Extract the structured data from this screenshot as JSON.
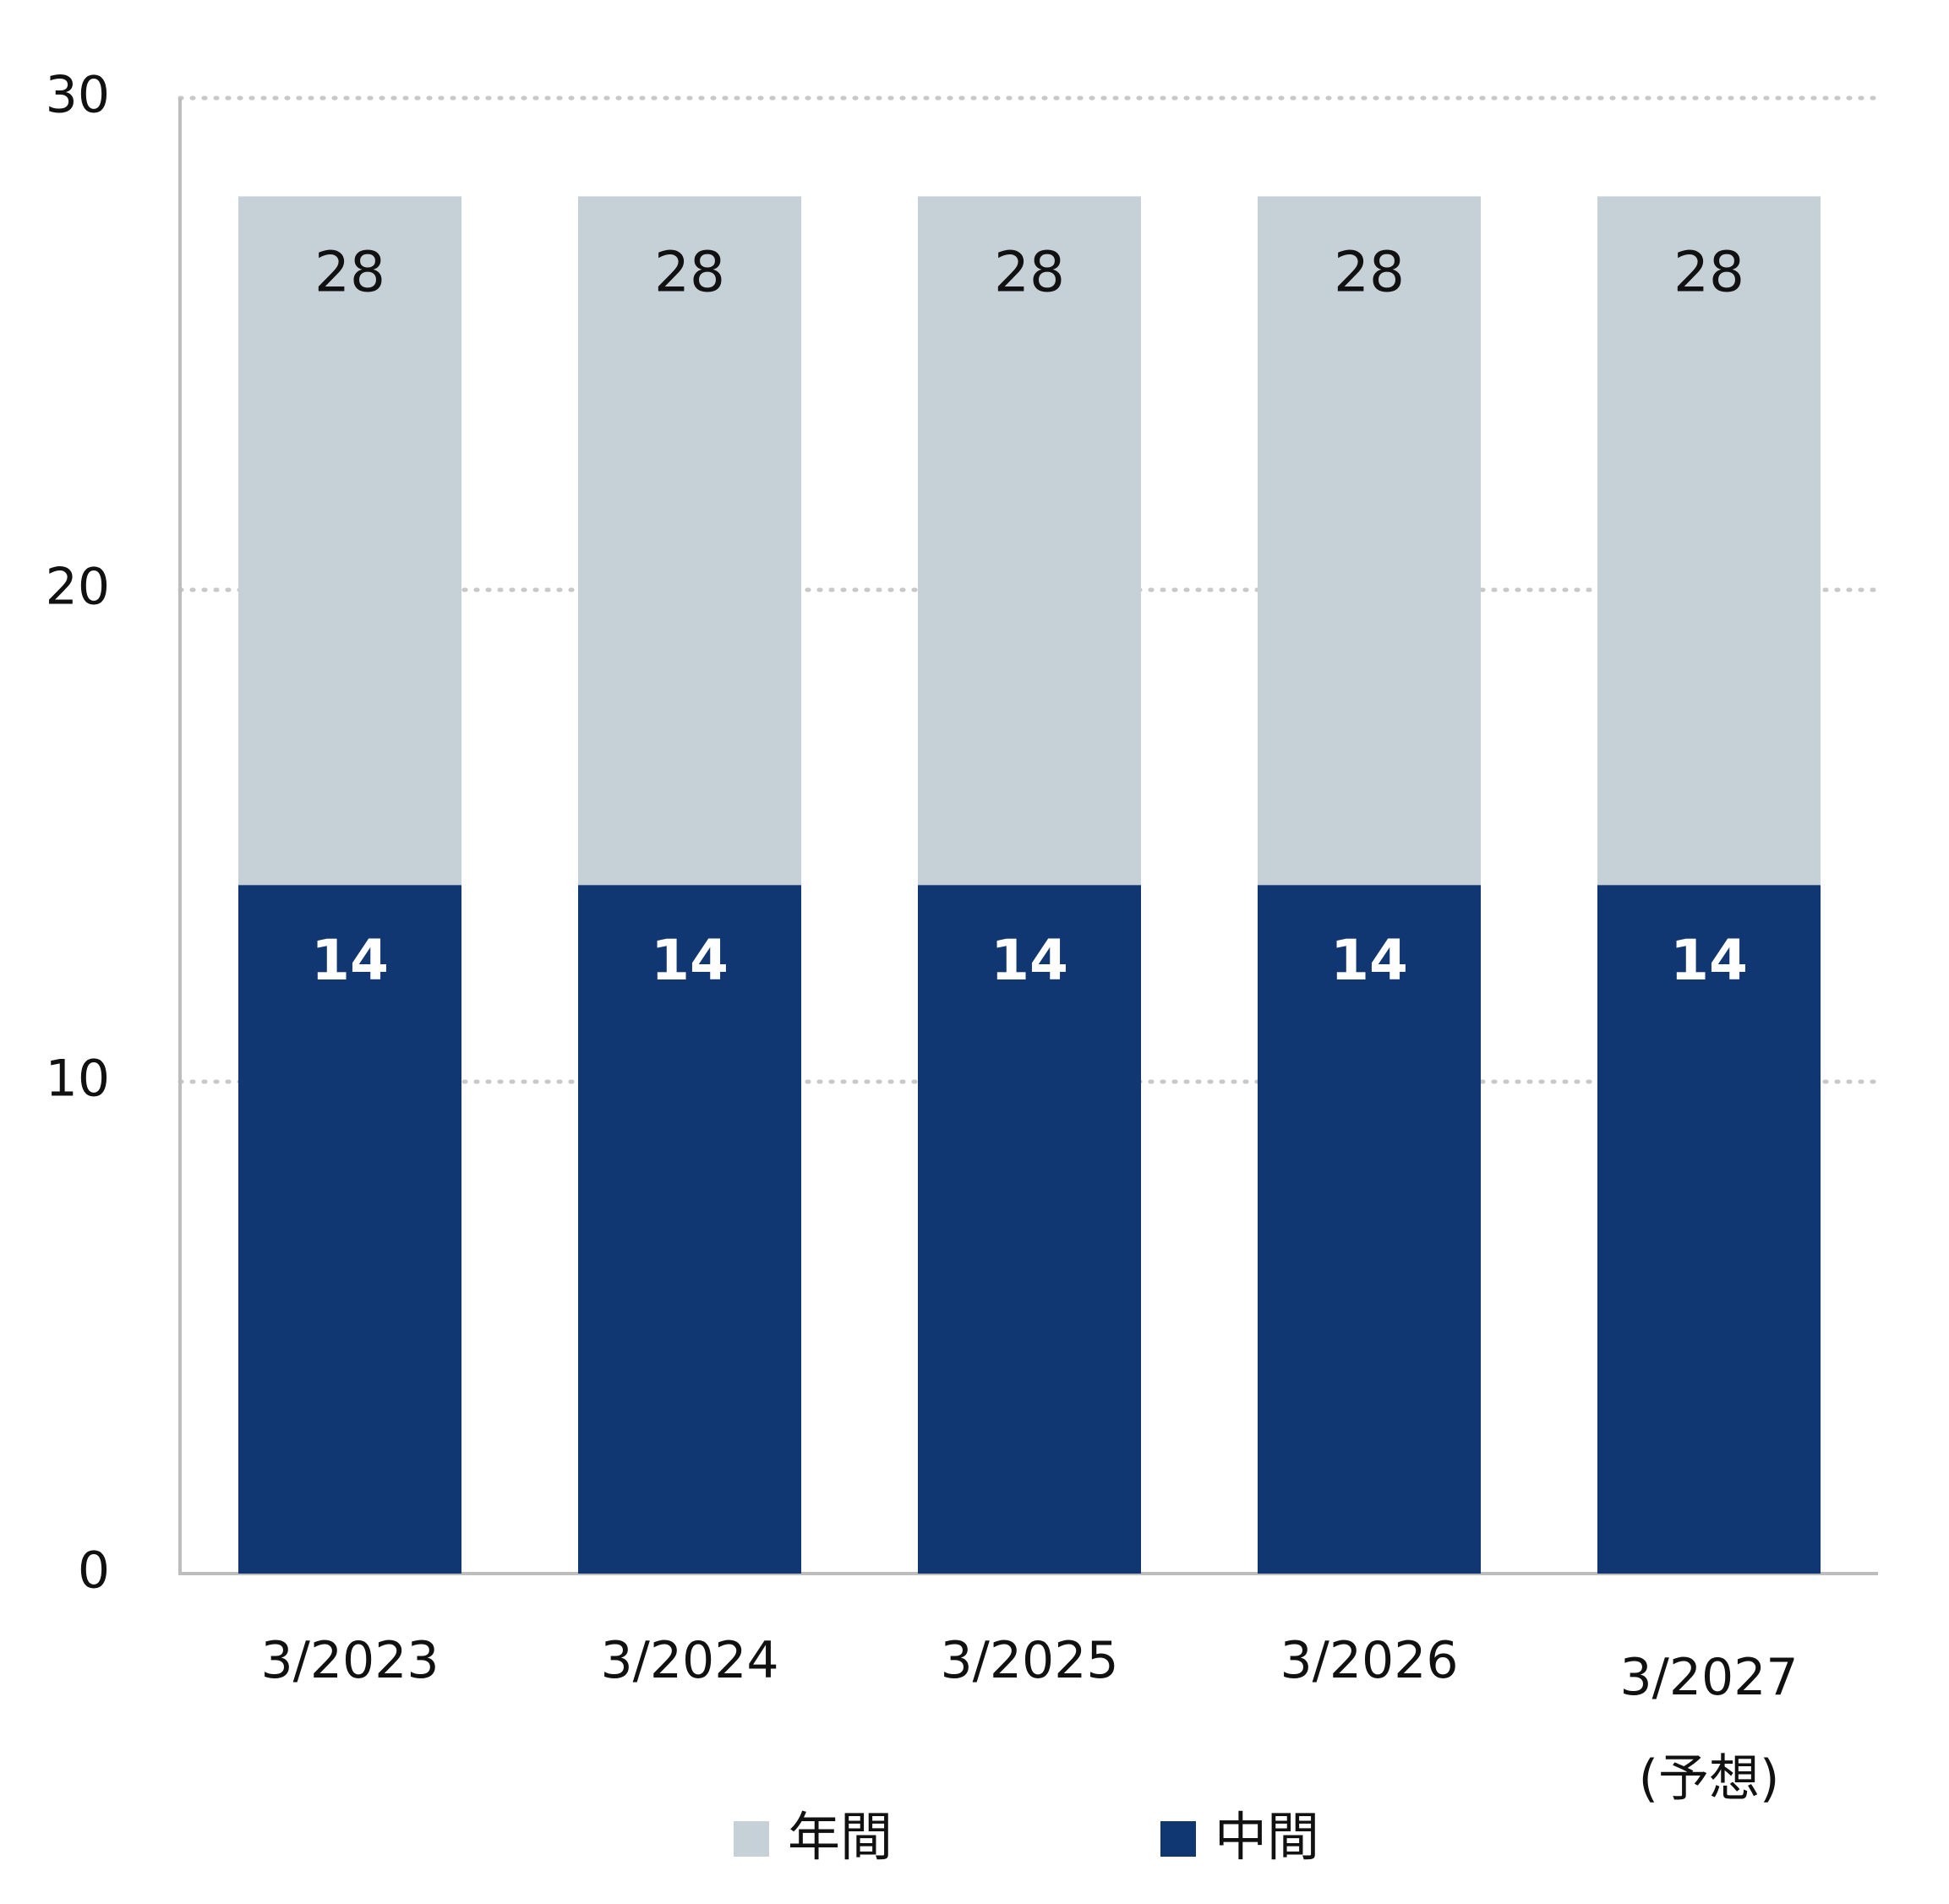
{
  "chart_data": {
    "type": "bar",
    "stacked": true,
    "categories": [
      "3/2023",
      "3/2024",
      "3/2025",
      "3/2026",
      "3/2027"
    ],
    "category_sublabels": [
      "",
      "",
      "",
      "",
      "(予想)"
    ],
    "series": [
      {
        "name": "中間",
        "values": [
          14,
          14,
          14,
          14,
          14
        ],
        "color": "#113773"
      },
      {
        "name": "年間",
        "values": [
          14,
          14,
          14,
          14,
          14
        ],
        "color": "#c5d0d7"
      }
    ],
    "data_labels": {
      "中間": [
        14,
        14,
        14,
        14,
        14
      ],
      "年間": [
        28,
        28,
        28,
        28,
        28
      ]
    },
    "yticks": [
      0,
      10,
      20,
      30
    ],
    "ylim": [
      0,
      30
    ],
    "grid": "horizontal-dotted",
    "legend": {
      "placement": "bottom",
      "order": [
        "年間",
        "中間"
      ]
    },
    "title": "",
    "xlabel": "",
    "ylabel": ""
  }
}
